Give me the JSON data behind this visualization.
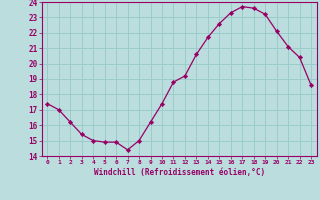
{
  "x": [
    0,
    1,
    2,
    3,
    4,
    5,
    6,
    7,
    8,
    9,
    10,
    11,
    12,
    13,
    14,
    15,
    16,
    17,
    18,
    19,
    20,
    21,
    22,
    23
  ],
  "y": [
    17.4,
    17.0,
    16.2,
    15.4,
    15.0,
    14.9,
    14.9,
    14.4,
    15.0,
    16.2,
    17.4,
    18.8,
    19.2,
    20.6,
    21.7,
    22.6,
    23.3,
    23.7,
    23.6,
    23.2,
    22.1,
    21.1,
    20.4,
    18.6
  ],
  "xlim": [
    -0.5,
    23.5
  ],
  "ylim": [
    14,
    24
  ],
  "yticks": [
    14,
    15,
    16,
    17,
    18,
    19,
    20,
    21,
    22,
    23,
    24
  ],
  "xticks": [
    0,
    1,
    2,
    3,
    4,
    5,
    6,
    7,
    8,
    9,
    10,
    11,
    12,
    13,
    14,
    15,
    16,
    17,
    18,
    19,
    20,
    21,
    22,
    23
  ],
  "xlabel": "Windchill (Refroidissement éolien,°C)",
  "line_color": "#990066",
  "marker_color": "#990066",
  "bg_color": "#bbdddd",
  "grid_color": "#99cccc",
  "axis_color": "#990066",
  "tick_color": "#990066",
  "xlabel_color": "#990066"
}
